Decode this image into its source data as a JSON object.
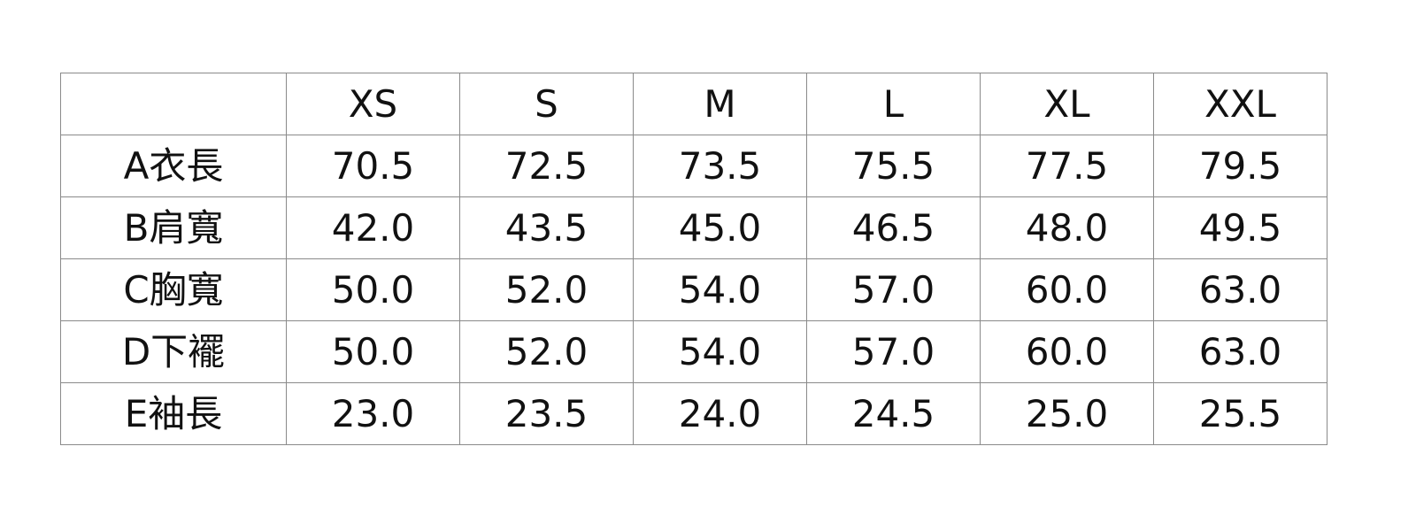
{
  "table": {
    "headers": [
      "",
      "XS",
      "S",
      "M",
      "L",
      "XL",
      "XXL"
    ],
    "rows": [
      {
        "label": "A衣長",
        "values": [
          "70.5",
          "72.5",
          "73.5",
          "75.5",
          "77.5",
          "79.5"
        ]
      },
      {
        "label": "B肩寬",
        "values": [
          "42.0",
          "43.5",
          "45.0",
          "46.5",
          "48.0",
          "49.5"
        ]
      },
      {
        "label": "C胸寬",
        "values": [
          "50.0",
          "52.0",
          "54.0",
          "57.0",
          "60.0",
          "63.0"
        ]
      },
      {
        "label": "D下襬",
        "values": [
          "50.0",
          "52.0",
          "54.0",
          "57.0",
          "60.0",
          "63.0"
        ]
      },
      {
        "label": "E袖長",
        "values": [
          "23.0",
          "23.5",
          "24.0",
          "24.5",
          "25.0",
          "25.5"
        ]
      }
    ]
  }
}
